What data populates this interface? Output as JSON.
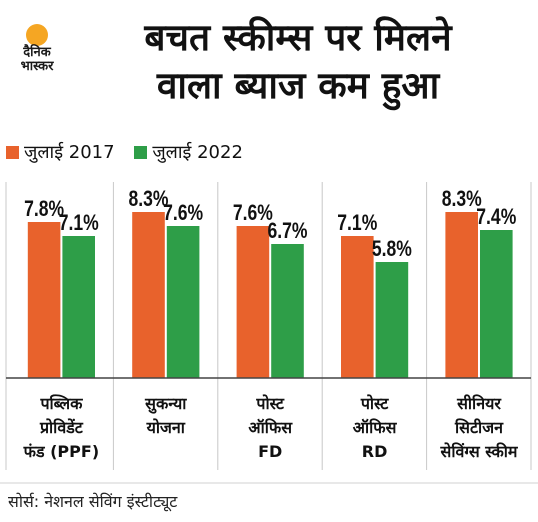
{
  "brand": {
    "logo_line1": "दैनिक",
    "logo_line2": "भास्कर",
    "logo_color": "#f5a623"
  },
  "chart_data": {
    "type": "bar",
    "title_lines": [
      "बचत स्कीम्स पर मिलने",
      "वाला ब्याज कम हुआ"
    ],
    "categories": [
      [
        "पब्लिक",
        "प्रोविडेंट",
        "फंड (PPF)"
      ],
      [
        "सुकन्या",
        "योजना"
      ],
      [
        "पोस्ट",
        "ऑफिस",
        "FD"
      ],
      [
        "पोस्ट",
        "ऑफिस",
        "RD"
      ],
      [
        "सीनियर",
        "सिटीजन",
        "सेविंग्स स्कीम"
      ]
    ],
    "series": [
      {
        "name": "जुलाई 2017",
        "color": "#e8622c",
        "values": [
          7.8,
          8.3,
          7.6,
          7.1,
          8.3
        ],
        "labels": [
          "7.8%",
          "8.3%",
          "7.6%",
          "7.1%",
          "8.3%"
        ]
      },
      {
        "name": "जुलाई 2022",
        "color": "#2e9e48",
        "values": [
          7.1,
          7.6,
          6.7,
          5.8,
          7.4
        ],
        "labels": [
          "7.1%",
          "7.6%",
          "6.7%",
          "5.8%",
          "7.4%"
        ]
      }
    ],
    "ylim": [
      0,
      8.3
    ],
    "grid": false,
    "legend_position": "top-left",
    "source": "सोर्स: नेशनल सेविंग इंस्टीट्यूट"
  }
}
